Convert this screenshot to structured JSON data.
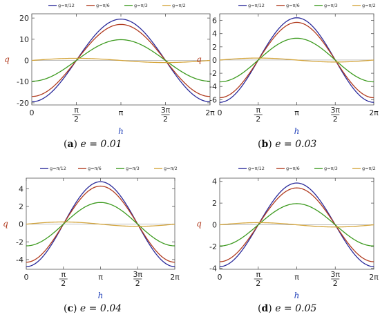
{
  "figure": {
    "xlabel": "h",
    "ylabel": "q",
    "x_tick_labels": [
      "0",
      "π/2",
      "π",
      "3π/2",
      "2π"
    ],
    "legend": [
      "g=π/12",
      "g=π/6",
      "g=π/3",
      "g=π/2"
    ],
    "colors": {
      "g=π/12": "#2a2a9a",
      "g=π/6": "#b03a1e",
      "g=π/3": "#3c9a1e",
      "g=π/2": "#d4a53c"
    },
    "xlabel_color": "#1f3fb8",
    "ylabel_color": "#b03a1e"
  },
  "chart_data": [
    {
      "type": "line",
      "panel": "a",
      "caption_letter": "a",
      "caption_eq": "e = 0.01",
      "x": [
        0,
        1.5708,
        3.1416,
        4.7124,
        6.2832
      ],
      "xlim": [
        0,
        6.2832
      ],
      "ylim": [
        -21,
        22
      ],
      "y_ticks": [
        -20,
        -10,
        0,
        10,
        20
      ],
      "grid": false,
      "legend_position": "top",
      "series": [
        {
          "name": "g=π/12",
          "color": "#2a2a9a",
          "amplitude": 19.5,
          "shape": "-cos(h)",
          "values": [
            -19.5,
            0,
            19.5,
            0,
            -19.5
          ]
        },
        {
          "name": "g=π/6",
          "color": "#b03a1e",
          "amplitude": 17.0,
          "shape": "-cos(h)",
          "values": [
            -17.0,
            0,
            17.0,
            0,
            -17.0
          ]
        },
        {
          "name": "g=π/3",
          "color": "#3c9a1e",
          "amplitude": 9.8,
          "shape": "-cos(h)",
          "values": [
            -9.8,
            0,
            9.8,
            0,
            -9.8
          ]
        },
        {
          "name": "g=π/2",
          "color": "#d4a53c",
          "amplitude": 1.0,
          "shape": "sin(h)",
          "values": [
            0,
            1.0,
            0,
            -1.0,
            0
          ]
        }
      ]
    },
    {
      "type": "line",
      "panel": "b",
      "caption_letter": "b",
      "caption_eq": "e = 0.03",
      "x": [
        0,
        1.5708,
        3.1416,
        4.7124,
        6.2832
      ],
      "xlim": [
        0,
        6.2832
      ],
      "ylim": [
        -6.8,
        7.0
      ],
      "y_ticks": [
        -6,
        -4,
        -2,
        0,
        2,
        4,
        6
      ],
      "grid": false,
      "legend_position": "top",
      "series": [
        {
          "name": "g=π/12",
          "color": "#2a2a9a",
          "amplitude": 6.4,
          "shape": "-cos(h)",
          "values": [
            -6.4,
            0,
            6.4,
            0,
            -6.4
          ]
        },
        {
          "name": "g=π/6",
          "color": "#b03a1e",
          "amplitude": 5.7,
          "shape": "-cos(h)",
          "values": [
            -5.7,
            0,
            5.7,
            0,
            -5.7
          ]
        },
        {
          "name": "g=π/3",
          "color": "#3c9a1e",
          "amplitude": 3.3,
          "shape": "-cos(h)",
          "values": [
            -3.3,
            0,
            3.3,
            0,
            -3.3
          ]
        },
        {
          "name": "g=π/2",
          "color": "#d4a53c",
          "amplitude": 0.3,
          "shape": "sin(h)",
          "values": [
            0,
            0.3,
            0,
            -0.3,
            0
          ]
        }
      ]
    },
    {
      "type": "line",
      "panel": "c",
      "caption_letter": "c",
      "caption_eq": "e = 0.04",
      "x": [
        0,
        1.5708,
        3.1416,
        4.7124,
        6.2832
      ],
      "xlim": [
        0,
        6.2832
      ],
      "ylim": [
        -5.1,
        5.2
      ],
      "y_ticks": [
        -4,
        -2,
        0,
        2,
        4
      ],
      "grid": false,
      "legend_position": "top",
      "series": [
        {
          "name": "g=π/12",
          "color": "#2a2a9a",
          "amplitude": 4.8,
          "shape": "-cos(h)",
          "values": [
            -4.8,
            0,
            4.8,
            0,
            -4.8
          ]
        },
        {
          "name": "g=π/6",
          "color": "#b03a1e",
          "amplitude": 4.3,
          "shape": "-cos(h)",
          "values": [
            -4.3,
            0,
            4.3,
            0,
            -4.3
          ]
        },
        {
          "name": "g=π/3",
          "color": "#3c9a1e",
          "amplitude": 2.45,
          "shape": "-cos(h)",
          "values": [
            -2.45,
            0,
            2.45,
            0,
            -2.45
          ]
        },
        {
          "name": "g=π/2",
          "color": "#d4a53c",
          "amplitude": 0.25,
          "shape": "sin(h)",
          "values": [
            0,
            0.25,
            0,
            -0.25,
            0
          ]
        }
      ]
    },
    {
      "type": "line",
      "panel": "d",
      "caption_letter": "d",
      "caption_eq": "e = 0.05",
      "x": [
        0,
        1.5708,
        3.1416,
        4.7124,
        6.2832
      ],
      "xlim": [
        0,
        6.2832
      ],
      "ylim": [
        -4.1,
        4.3
      ],
      "y_ticks": [
        -4,
        -2,
        0,
        2,
        4
      ],
      "grid": false,
      "legend_position": "top",
      "series": [
        {
          "name": "g=π/12",
          "color": "#2a2a9a",
          "amplitude": 3.85,
          "shape": "-cos(h)",
          "values": [
            -3.85,
            0,
            3.85,
            0,
            -3.85
          ]
        },
        {
          "name": "g=π/6",
          "color": "#b03a1e",
          "amplitude": 3.4,
          "shape": "-cos(h)",
          "values": [
            -3.4,
            0,
            3.4,
            0,
            -3.4
          ]
        },
        {
          "name": "g=π/3",
          "color": "#3c9a1e",
          "amplitude": 1.95,
          "shape": "-cos(h)",
          "values": [
            -1.95,
            0,
            1.95,
            0,
            -1.95
          ]
        },
        {
          "name": "g=π/2",
          "color": "#d4a53c",
          "amplitude": 0.2,
          "shape": "sin(h)",
          "values": [
            0,
            0.2,
            0,
            -0.2,
            0
          ]
        }
      ]
    }
  ]
}
